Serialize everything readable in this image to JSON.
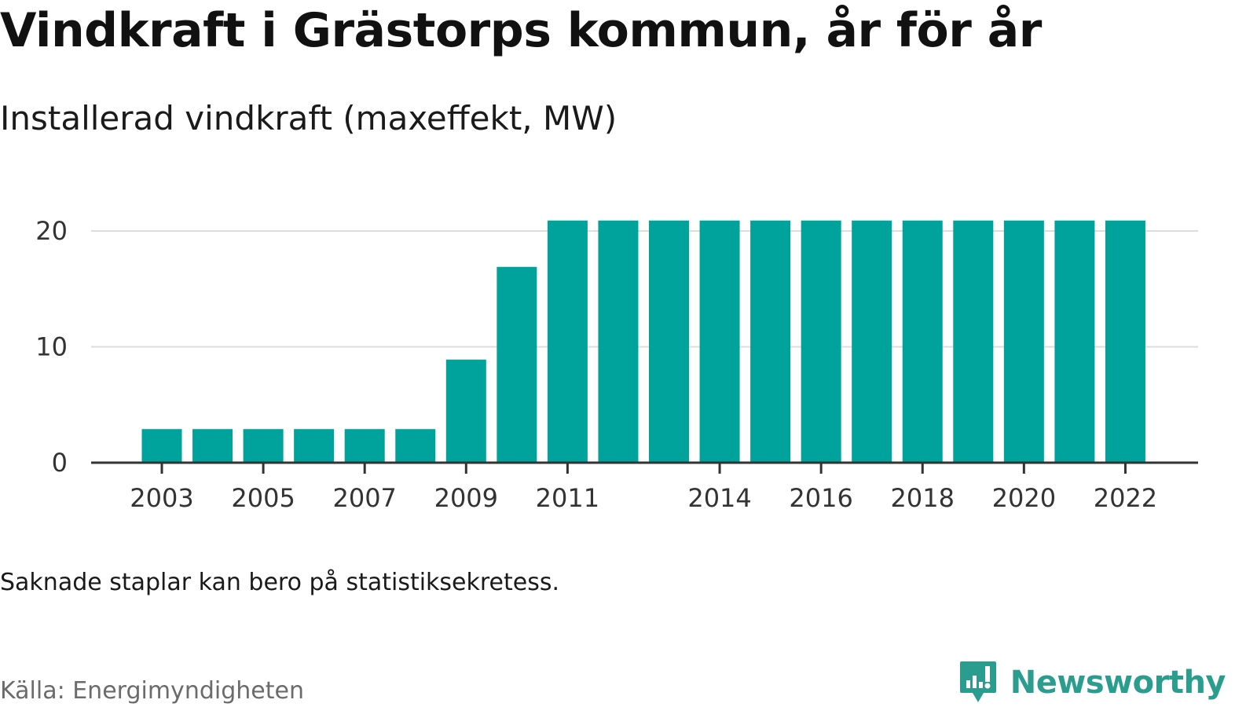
{
  "header": {
    "title": "Vindkraft i Grästorps kommun, år för år",
    "subtitle": "Installerad vindkraft (maxeffekt, MW)"
  },
  "footer": {
    "note": "Saknade staplar kan bero på statistiksekretess.",
    "source": "Källa: Energimyndigheten",
    "brand": "Newsworthy"
  },
  "colors": {
    "bar": "#00a39b",
    "grid": "#dddddd",
    "axis": "#333333",
    "brand": "#2a9d8f"
  },
  "chart_data": {
    "type": "bar",
    "title": "Vindkraft i Grästorps kommun, år för år",
    "subtitle": "Installerad vindkraft (maxeffekt, MW)",
    "xlabel": "",
    "ylabel": "",
    "categories": [
      2003,
      2004,
      2005,
      2006,
      2007,
      2008,
      2009,
      2010,
      2011,
      2012,
      2013,
      2014,
      2015,
      2016,
      2017,
      2018,
      2019,
      2020,
      2021,
      2022
    ],
    "values": [
      2.9,
      2.9,
      2.9,
      2.9,
      2.9,
      2.9,
      8.9,
      16.9,
      20.9,
      20.9,
      20.9,
      20.9,
      20.9,
      20.9,
      20.9,
      20.9,
      20.9,
      20.9,
      20.9,
      20.9
    ],
    "x_tick_labels": [
      "2003",
      "2005",
      "2007",
      "2009",
      "2011",
      "2014",
      "2016",
      "2018",
      "2020",
      "2022"
    ],
    "y_ticks": [
      0,
      10,
      20
    ],
    "ylim": [
      0,
      21
    ],
    "grid": true
  }
}
